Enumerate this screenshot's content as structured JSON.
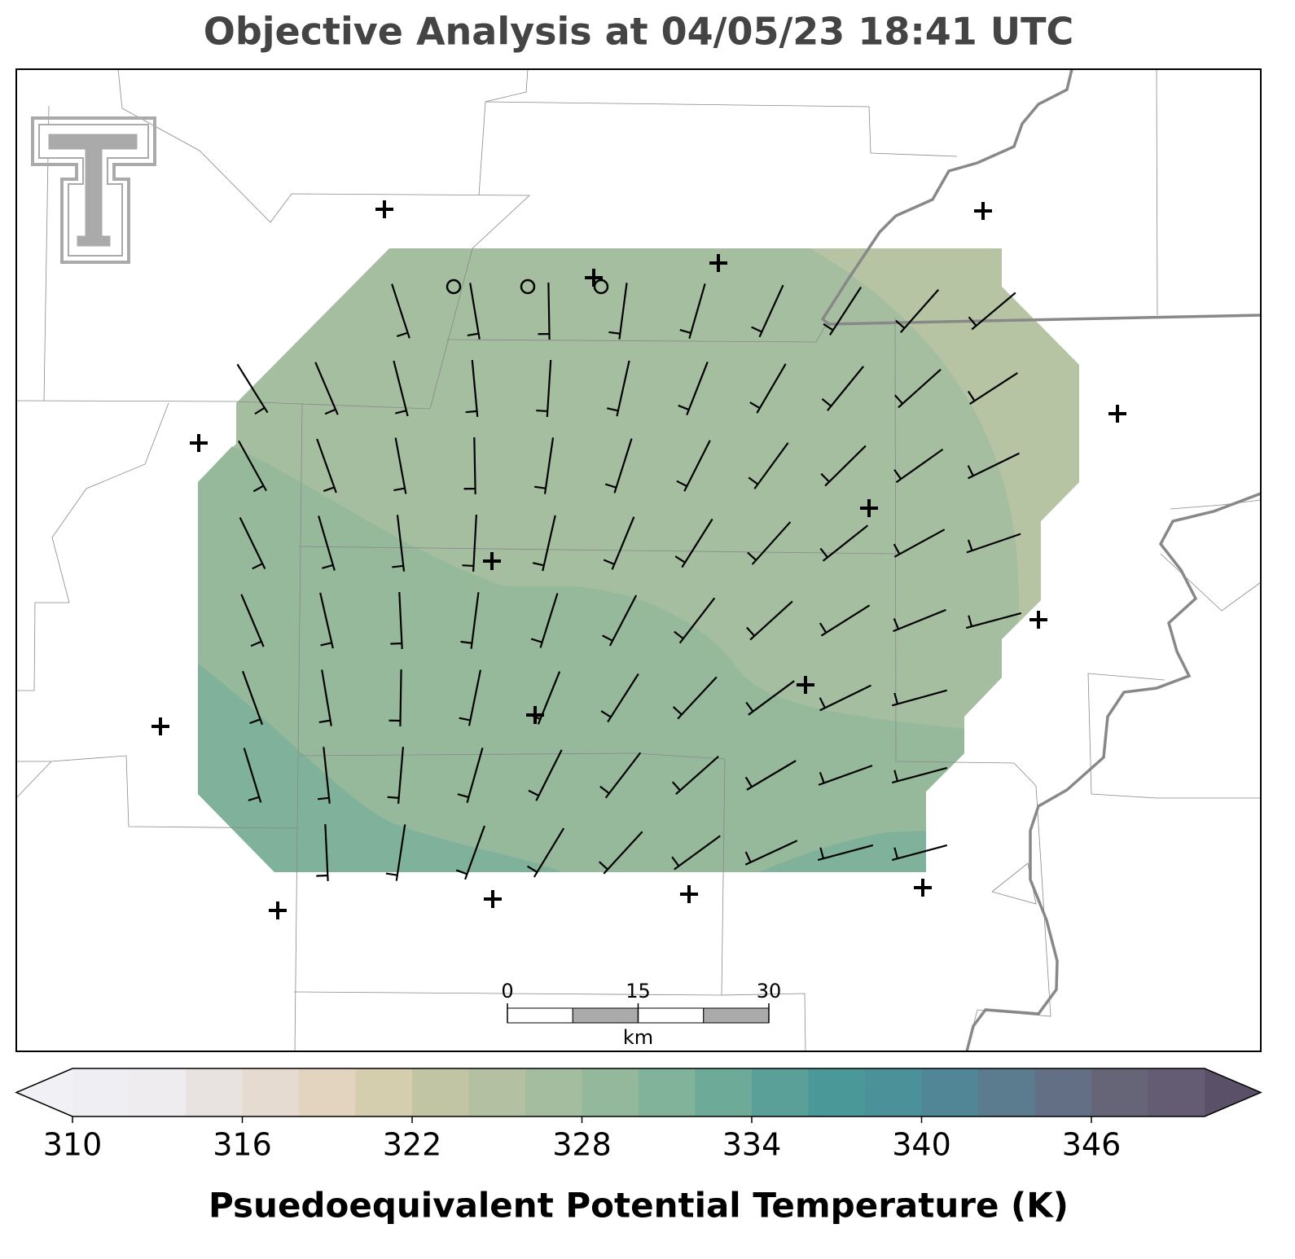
{
  "title": "Objective Analysis at 04/05/23 18:41 UTC",
  "colorbar": {
    "label": "Psuedoequivalent Potential Temperature (K)",
    "lim": [
      310,
      350
    ],
    "ticks": [
      310,
      316,
      322,
      328,
      334,
      340,
      346
    ],
    "colors": [
      "#efeef2",
      "#eeecee",
      "#e8e3e0",
      "#e5dbd0",
      "#e2d4bf",
      "#d4cdae",
      "#c1c5a4",
      "#b3c0a2",
      "#a4bd9f",
      "#93b89b",
      "#81b29a",
      "#6daa98",
      "#5aa098",
      "#4b9898",
      "#4a9199",
      "#518696",
      "#5b7b8f",
      "#636f85",
      "#666578",
      "#645c73"
    ],
    "extend_colors": [
      "#f0f0f5",
      "#5a5068"
    ]
  },
  "scale_bar": {
    "ticks": [
      0,
      15,
      30
    ],
    "unit": "km"
  }
}
